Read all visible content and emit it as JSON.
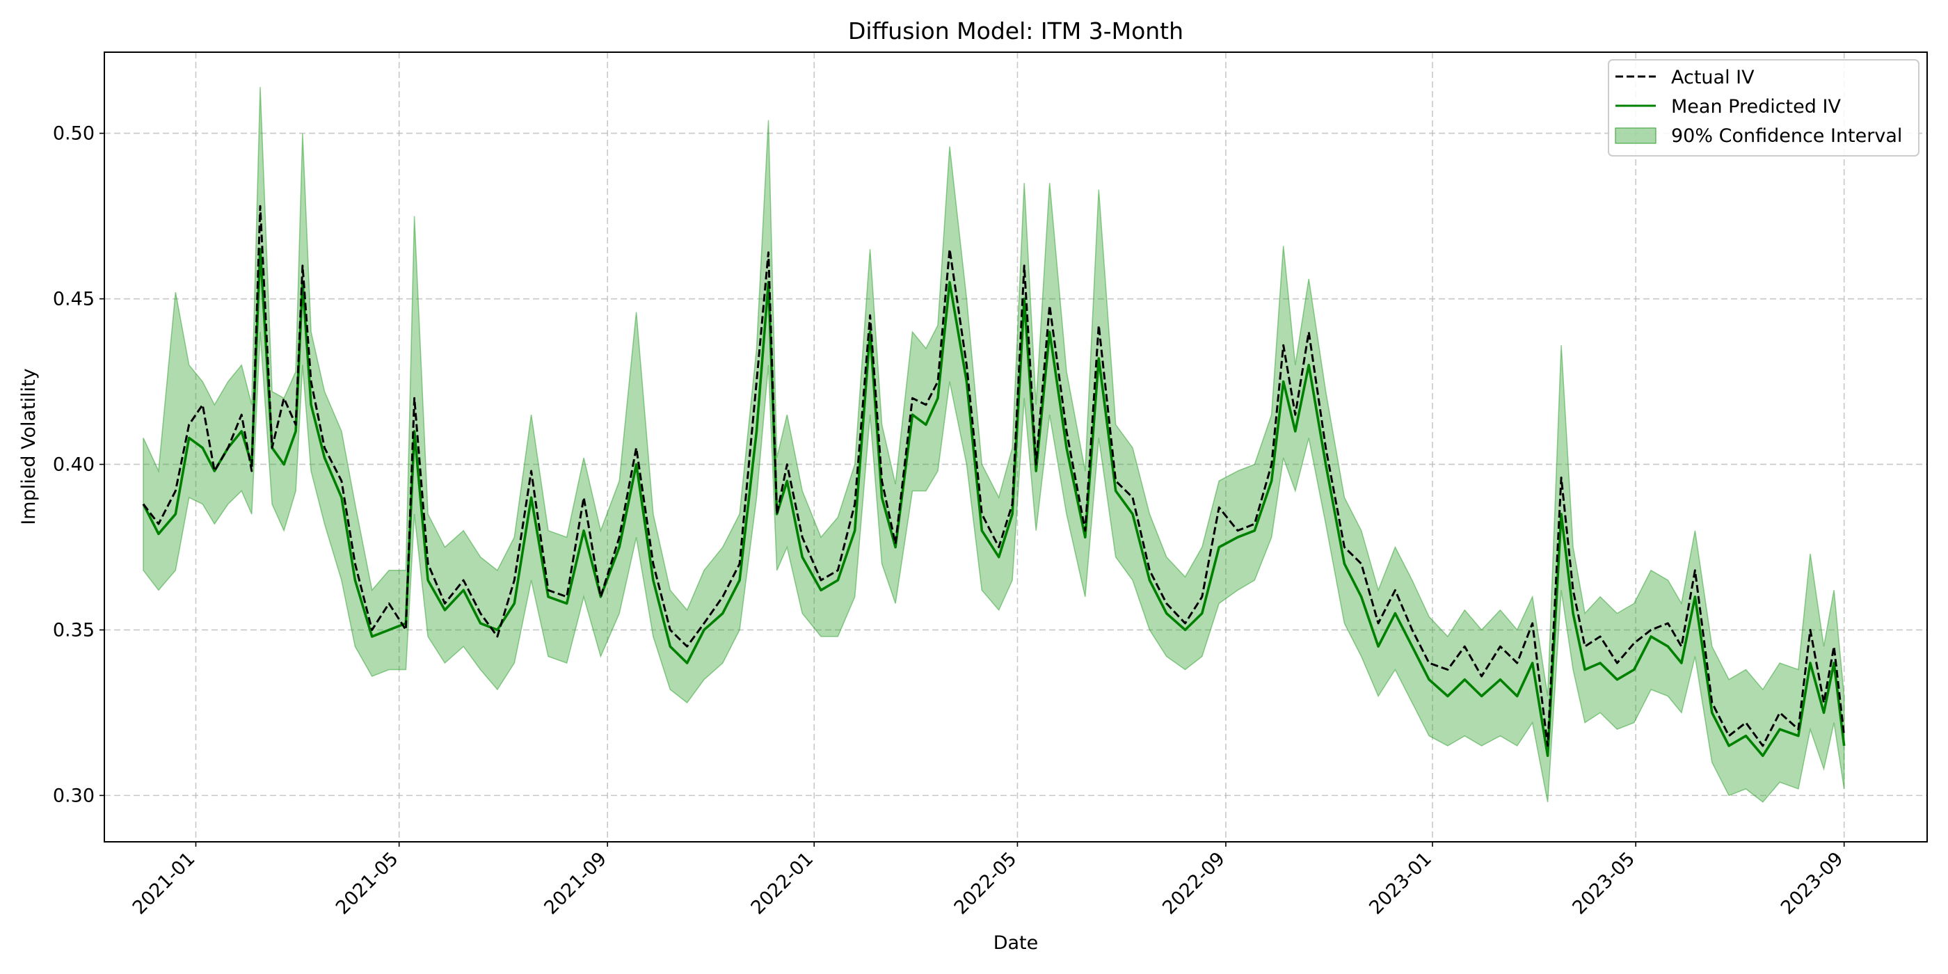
{
  "chart_data": {
    "type": "line",
    "title": "Diffusion Model: ITM 3-Month",
    "xlabel": "Date",
    "ylabel": "Implied Volatility",
    "xlim": [
      "2020-11-08",
      "2023-10-20"
    ],
    "ylim": [
      0.286,
      0.5245
    ],
    "yticks": [
      0.3,
      0.35,
      0.4,
      0.45,
      0.5
    ],
    "ytick_labels": [
      "0.30",
      "0.35",
      "0.40",
      "0.45",
      "0.50"
    ],
    "xticks": [
      "2021-01-01",
      "2021-05-01",
      "2021-09-01",
      "2022-01-01",
      "2022-05-01",
      "2022-09-01",
      "2023-01-01",
      "2023-05-01",
      "2023-09-01"
    ],
    "xtick_labels": [
      "2021-01",
      "2021-05",
      "2021-09",
      "2022-01",
      "2022-05",
      "2022-09",
      "2023-01",
      "2023-05",
      "2023-09"
    ],
    "grid": true,
    "legend_position": "top-right",
    "x": [
      "2020-12-01",
      "2020-12-10",
      "2020-12-20",
      "2020-12-28",
      "2021-01-05",
      "2021-01-12",
      "2021-01-20",
      "2021-01-28",
      "2021-02-03",
      "2021-02-08",
      "2021-02-15",
      "2021-02-22",
      "2021-03-01",
      "2021-03-05",
      "2021-03-10",
      "2021-03-18",
      "2021-03-28",
      "2021-04-05",
      "2021-04-15",
      "2021-04-25",
      "2021-05-05",
      "2021-05-10",
      "2021-05-18",
      "2021-05-28",
      "2021-06-08",
      "2021-06-18",
      "2021-06-28",
      "2021-07-08",
      "2021-07-18",
      "2021-07-28",
      "2021-08-08",
      "2021-08-18",
      "2021-08-28",
      "2021-09-08",
      "2021-09-18",
      "2021-09-28",
      "2021-10-08",
      "2021-10-18",
      "2021-10-28",
      "2021-11-08",
      "2021-11-18",
      "2021-11-28",
      "2021-12-05",
      "2021-12-10",
      "2021-12-16",
      "2021-12-25",
      "2022-01-05",
      "2022-01-15",
      "2022-01-25",
      "2022-02-03",
      "2022-02-10",
      "2022-02-18",
      "2022-02-28",
      "2022-03-08",
      "2022-03-15",
      "2022-03-22",
      "2022-04-01",
      "2022-04-10",
      "2022-04-20",
      "2022-04-28",
      "2022-05-05",
      "2022-05-12",
      "2022-05-20",
      "2022-05-30",
      "2022-06-10",
      "2022-06-18",
      "2022-06-28",
      "2022-07-08",
      "2022-07-18",
      "2022-07-28",
      "2022-08-08",
      "2022-08-18",
      "2022-08-28",
      "2022-09-08",
      "2022-09-18",
      "2022-09-28",
      "2022-10-05",
      "2022-10-12",
      "2022-10-20",
      "2022-10-30",
      "2022-11-10",
      "2022-11-20",
      "2022-11-30",
      "2022-12-10",
      "2022-12-20",
      "2022-12-30",
      "2023-01-10",
      "2023-01-20",
      "2023-01-30",
      "2023-02-10",
      "2023-02-20",
      "2023-03-01",
      "2023-03-10",
      "2023-03-18",
      "2023-03-25",
      "2023-04-01",
      "2023-04-10",
      "2023-04-20",
      "2023-04-30",
      "2023-05-10",
      "2023-05-20",
      "2023-05-28",
      "2023-06-05",
      "2023-06-15",
      "2023-06-25",
      "2023-07-05",
      "2023-07-15",
      "2023-07-25",
      "2023-08-05",
      "2023-08-12",
      "2023-08-20",
      "2023-08-26",
      "2023-09-01"
    ],
    "series": [
      {
        "name": "Actual IV",
        "color": "#000000",
        "style": "dashed",
        "values": [
          0.388,
          0.382,
          0.392,
          0.412,
          0.418,
          0.398,
          0.405,
          0.415,
          0.398,
          0.478,
          0.405,
          0.42,
          0.412,
          0.46,
          0.425,
          0.405,
          0.395,
          0.37,
          0.35,
          0.358,
          0.35,
          0.42,
          0.37,
          0.358,
          0.365,
          0.355,
          0.348,
          0.365,
          0.398,
          0.362,
          0.36,
          0.39,
          0.36,
          0.378,
          0.405,
          0.37,
          0.35,
          0.345,
          0.352,
          0.36,
          0.37,
          0.425,
          0.464,
          0.385,
          0.4,
          0.378,
          0.365,
          0.368,
          0.388,
          0.445,
          0.395,
          0.376,
          0.42,
          0.418,
          0.425,
          0.465,
          0.43,
          0.385,
          0.375,
          0.388,
          0.46,
          0.4,
          0.448,
          0.41,
          0.38,
          0.442,
          0.395,
          0.39,
          0.368,
          0.358,
          0.352,
          0.36,
          0.387,
          0.38,
          0.382,
          0.4,
          0.436,
          0.415,
          0.44,
          0.405,
          0.375,
          0.37,
          0.352,
          0.362,
          0.35,
          0.34,
          0.338,
          0.345,
          0.336,
          0.345,
          0.34,
          0.352,
          0.315,
          0.396,
          0.362,
          0.345,
          0.348,
          0.34,
          0.346,
          0.35,
          0.352,
          0.345,
          0.368,
          0.328,
          0.318,
          0.322,
          0.315,
          0.325,
          0.32,
          0.35,
          0.328,
          0.345,
          0.318
        ]
      },
      {
        "name": "Mean Predicted IV",
        "color": "#008000",
        "style": "solid",
        "values": [
          0.388,
          0.379,
          0.385,
          0.408,
          0.405,
          0.398,
          0.405,
          0.41,
          0.4,
          0.465,
          0.405,
          0.4,
          0.41,
          0.455,
          0.418,
          0.402,
          0.39,
          0.365,
          0.348,
          0.35,
          0.352,
          0.41,
          0.365,
          0.356,
          0.362,
          0.352,
          0.35,
          0.358,
          0.39,
          0.36,
          0.358,
          0.38,
          0.36,
          0.375,
          0.4,
          0.365,
          0.345,
          0.34,
          0.35,
          0.355,
          0.365,
          0.41,
          0.455,
          0.385,
          0.395,
          0.372,
          0.362,
          0.365,
          0.38,
          0.44,
          0.39,
          0.375,
          0.415,
          0.412,
          0.42,
          0.455,
          0.425,
          0.38,
          0.372,
          0.385,
          0.45,
          0.398,
          0.44,
          0.405,
          0.378,
          0.432,
          0.392,
          0.385,
          0.365,
          0.355,
          0.35,
          0.355,
          0.375,
          0.378,
          0.38,
          0.395,
          0.425,
          0.41,
          0.43,
          0.4,
          0.37,
          0.36,
          0.345,
          0.355,
          0.345,
          0.335,
          0.33,
          0.335,
          0.33,
          0.335,
          0.33,
          0.34,
          0.312,
          0.385,
          0.355,
          0.338,
          0.34,
          0.335,
          0.338,
          0.348,
          0.345,
          0.34,
          0.36,
          0.325,
          0.315,
          0.318,
          0.312,
          0.32,
          0.318,
          0.34,
          0.325,
          0.34,
          0.315
        ]
      }
    ],
    "confidence_interval": {
      "name": "90% Confidence Interval",
      "color": "#2ca02c",
      "lower": [
        0.368,
        0.362,
        0.368,
        0.39,
        0.388,
        0.382,
        0.388,
        0.392,
        0.385,
        0.44,
        0.388,
        0.38,
        0.392,
        0.43,
        0.398,
        0.382,
        0.365,
        0.345,
        0.336,
        0.338,
        0.338,
        0.385,
        0.348,
        0.34,
        0.345,
        0.338,
        0.332,
        0.34,
        0.365,
        0.342,
        0.34,
        0.36,
        0.342,
        0.355,
        0.378,
        0.348,
        0.332,
        0.328,
        0.335,
        0.34,
        0.35,
        0.39,
        0.43,
        0.368,
        0.375,
        0.355,
        0.348,
        0.348,
        0.36,
        0.415,
        0.37,
        0.358,
        0.392,
        0.392,
        0.398,
        0.425,
        0.4,
        0.362,
        0.356,
        0.365,
        0.42,
        0.38,
        0.415,
        0.385,
        0.36,
        0.408,
        0.372,
        0.365,
        0.35,
        0.342,
        0.338,
        0.342,
        0.358,
        0.362,
        0.365,
        0.378,
        0.402,
        0.392,
        0.408,
        0.382,
        0.352,
        0.342,
        0.33,
        0.338,
        0.328,
        0.318,
        0.315,
        0.318,
        0.315,
        0.318,
        0.315,
        0.322,
        0.298,
        0.362,
        0.338,
        0.322,
        0.325,
        0.32,
        0.322,
        0.332,
        0.33,
        0.325,
        0.342,
        0.31,
        0.3,
        0.302,
        0.298,
        0.304,
        0.302,
        0.32,
        0.308,
        0.322,
        0.302
      ],
      "upper": [
        0.408,
        0.398,
        0.452,
        0.43,
        0.425,
        0.418,
        0.425,
        0.43,
        0.418,
        0.514,
        0.422,
        0.42,
        0.428,
        0.5,
        0.44,
        0.422,
        0.41,
        0.388,
        0.362,
        0.368,
        0.368,
        0.475,
        0.385,
        0.375,
        0.38,
        0.372,
        0.368,
        0.378,
        0.415,
        0.38,
        0.378,
        0.402,
        0.38,
        0.395,
        0.446,
        0.385,
        0.362,
        0.356,
        0.368,
        0.375,
        0.385,
        0.435,
        0.504,
        0.402,
        0.415,
        0.392,
        0.378,
        0.384,
        0.4,
        0.465,
        0.412,
        0.394,
        0.44,
        0.435,
        0.442,
        0.496,
        0.45,
        0.4,
        0.39,
        0.405,
        0.485,
        0.418,
        0.485,
        0.428,
        0.398,
        0.483,
        0.412,
        0.405,
        0.385,
        0.372,
        0.366,
        0.375,
        0.395,
        0.398,
        0.4,
        0.415,
        0.466,
        0.43,
        0.456,
        0.422,
        0.39,
        0.38,
        0.362,
        0.375,
        0.365,
        0.354,
        0.348,
        0.356,
        0.35,
        0.356,
        0.35,
        0.36,
        0.33,
        0.436,
        0.375,
        0.355,
        0.36,
        0.355,
        0.358,
        0.368,
        0.365,
        0.358,
        0.38,
        0.345,
        0.335,
        0.338,
        0.332,
        0.34,
        0.338,
        0.373,
        0.345,
        0.362,
        0.33
      ]
    }
  }
}
